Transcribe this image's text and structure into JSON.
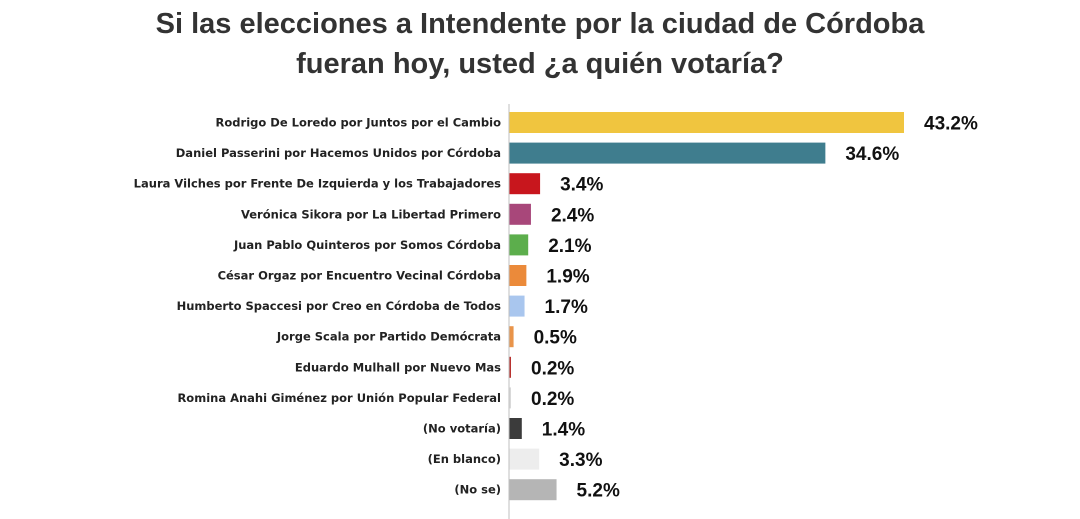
{
  "chart_data": {
    "type": "bar",
    "orientation": "horizontal",
    "title_lines": [
      "Si las elecciones a Intendente por la ciudad de Córdoba",
      "fueran hoy, usted ¿a quién votaría?"
    ],
    "categories": [
      "Rodrigo De Loredo por Juntos por el Cambio",
      "Daniel Passerini por Hacemos Unidos por Córdoba",
      "Laura Vilches por Frente De Izquierda y los Trabajadores",
      "Verónica Sikora por La Libertad Primero",
      "Juan Pablo Quinteros por Somos Córdoba",
      "César Orgaz por Encuentro Vecinal Córdoba",
      "Humberto Spaccesi por Creo en Córdoba de Todos",
      "Jorge Scala por Partido Demócrata",
      "Eduardo Mulhall por Nuevo Mas",
      "Romina Anahi Giménez por Unión Popular Federal",
      "(No votaría)",
      "(En blanco)",
      "(No se)"
    ],
    "values": [
      43.2,
      34.6,
      3.4,
      2.4,
      2.1,
      1.9,
      1.7,
      0.5,
      0.2,
      0.2,
      1.4,
      3.3,
      5.2
    ],
    "value_labels": [
      "43.2%",
      "34.6%",
      "3.4%",
      "2.4%",
      "2.1%",
      "1.9%",
      "1.7%",
      "0.5%",
      "0.2%",
      "0.2%",
      "1.4%",
      "3.3%",
      "5.2%"
    ],
    "colors": [
      "#F0C53F",
      "#3F7D8E",
      "#C8161D",
      "#A8477A",
      "#5CAE4C",
      "#EB8A3A",
      "#A9C6EE",
      "#E9944A",
      "#B8322F",
      "#D9D9D9",
      "#3B3B3B",
      "#EDEDED",
      "#B5B5B5"
    ],
    "xlim": [
      0,
      45
    ],
    "grid": false,
    "legend": "none"
  }
}
